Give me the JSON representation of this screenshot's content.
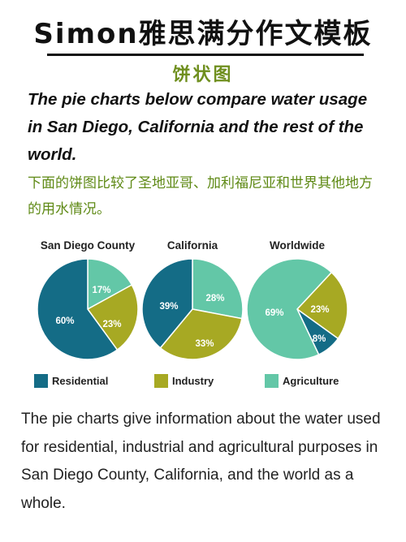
{
  "header": {
    "title": "Simon雅思满分作文模板",
    "subtitle": "饼状图"
  },
  "question": "The pie charts below compare water usage in San Diego, California and the rest of the world.",
  "translation": "下面的饼图比较了圣地亚哥、加利福尼亚和世界其他地方的用水情况。",
  "body_text": "The pie charts give information about the water used for residential, industrial and agricultural purposes in San Diego County, California, and the world as a whole.",
  "colors": {
    "residential": "#146c86",
    "industry": "#a7a923",
    "agriculture": "#63c7a7",
    "green_text": "#6f8f1e"
  },
  "chart_data": {
    "type": "pie",
    "legend": [
      {
        "name": "Residential",
        "color": "#146c86"
      },
      {
        "name": "Industry",
        "color": "#a7a923"
      },
      {
        "name": "Agriculture",
        "color": "#63c7a7"
      }
    ],
    "legend_placement": "bottom",
    "pies": [
      {
        "title": "San Diego County",
        "slices": [
          {
            "name": "Residential",
            "value": 60,
            "label": "60%"
          },
          {
            "name": "Industry",
            "value": 23,
            "label": "23%"
          },
          {
            "name": "Agriculture",
            "value": 17,
            "label": "17%"
          }
        ]
      },
      {
        "title": "California",
        "slices": [
          {
            "name": "Residential",
            "value": 39,
            "label": "39%"
          },
          {
            "name": "Industry",
            "value": 33,
            "label": "33%"
          },
          {
            "name": "Agriculture",
            "value": 28,
            "label": "28%"
          }
        ]
      },
      {
        "title": "Worldwide",
        "slices": [
          {
            "name": "Residential",
            "value": 8,
            "label": "8%"
          },
          {
            "name": "Industry",
            "value": 23,
            "label": "23%"
          },
          {
            "name": "Agriculture",
            "value": 69,
            "label": "69%"
          }
        ]
      }
    ]
  }
}
